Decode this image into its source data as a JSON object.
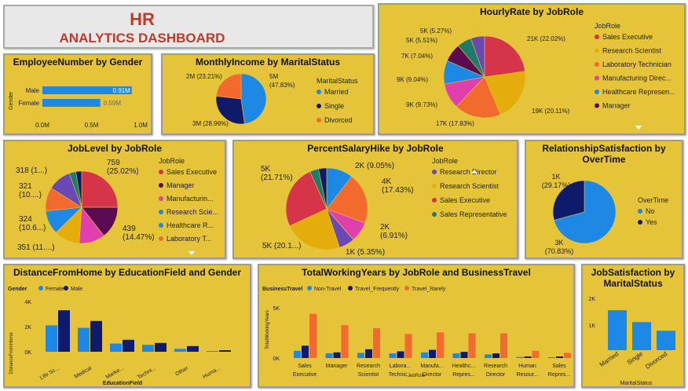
{
  "header": {
    "title": "HR",
    "subtitle": "ANALYTICS DASHBOARD"
  },
  "colors": {
    "tile": "#e6c43a",
    "title": "#c0392b",
    "blue": "#1e88e5",
    "navy": "#101a6b",
    "orange": "#f26a2e",
    "red": "#d63448",
    "gold": "#e4ad0c",
    "pink": "#e23fae",
    "teal": "#207a6e",
    "purple": "#6b49b5",
    "maroon": "#5c0b50"
  },
  "gender": {
    "title": "EmployeeNumber by Gender",
    "axis_label": "Gender",
    "categories": [
      "Male",
      "Female"
    ],
    "values": [
      0.91,
      0.59
    ],
    "labels": [
      "0.91M",
      "0.59M"
    ],
    "ticks": [
      "0.0M",
      "0.5M",
      "1.0M"
    ],
    "xmax": 1.0
  },
  "income": {
    "title": "MonthlyIncome by MaritalStatus",
    "legend_title": "MaritalStatus",
    "slices": [
      {
        "name": "Married",
        "value": 47.83,
        "label": "5M\n(47.83%)",
        "color": "#1e88e5"
      },
      {
        "name": "Single",
        "value": 28.96,
        "label": "3M (28.96%)",
        "color": "#101a6b"
      },
      {
        "name": "Divorced",
        "value": 23.21,
        "label": "2M (23.21%)",
        "color": "#f26a2e"
      }
    ]
  },
  "hourly": {
    "title": "HourlyRate by JobRole",
    "legend_title": "JobRole",
    "legend": [
      "Sales Executive",
      "Research Scientist",
      "Laboratory Technician",
      "Manufacturing Direc...",
      "Healthcare Represen...",
      "Manager"
    ],
    "slices": [
      {
        "value": 22.02,
        "label": "21K (22.02%)",
        "color": "#d63448"
      },
      {
        "value": 20.11,
        "label": "19K (20.11%)",
        "color": "#e4ad0c"
      },
      {
        "value": 17.83,
        "label": "17K (17.83%)",
        "color": "#f26a2e"
      },
      {
        "value": 9.73,
        "label": "9K (9.73%)",
        "color": "#e23fae"
      },
      {
        "value": 9.04,
        "label": "9K (9.04%)",
        "color": "#1e88e5"
      },
      {
        "value": 7.04,
        "label": "7K (7.04%)",
        "color": "#5c0b50"
      },
      {
        "value": 5.51,
        "label": "5K (5.51%)",
        "color": "#207a6e"
      },
      {
        "value": 5.27,
        "label": "5K (5.27%)",
        "color": "#6b49b5"
      }
    ]
  },
  "joblevel": {
    "title": "JobLevel by JobRole",
    "legend_title": "JobRole",
    "legend": [
      "Sales Executive",
      "Manager",
      "Manufacturin...",
      "Research Scie...",
      "Healthcare R...",
      "Laboratory T..."
    ],
    "slices": [
      {
        "value": 25.02,
        "label": "759\n(25.02%)",
        "color": "#d63448"
      },
      {
        "value": 14.47,
        "label": "439\n(14.47%)",
        "color": "#5c0b50"
      },
      {
        "value": 11.6,
        "label": "",
        "color": "#e23fae"
      },
      {
        "value": 11.57,
        "label": "351 (11....)",
        "color": "#e4ad0c"
      },
      {
        "value": 10.68,
        "label": "324\n(10.6...)",
        "color": "#1e88e5"
      },
      {
        "value": 10.58,
        "label": "321\n(10....)",
        "color": "#f26a2e"
      },
      {
        "value": 10.48,
        "label": "318 (1...)",
        "color": "#6b49b5"
      },
      {
        "value": 3.0,
        "label": "",
        "color": "#207a6e"
      },
      {
        "value": 2.6,
        "label": "",
        "color": "#101a6b"
      }
    ]
  },
  "salary": {
    "title": "PercentSalaryHike by JobRole",
    "legend_title": "JobRole",
    "legend": [
      "Research Director",
      "Research Scientist",
      "Sales Executive",
      "Sales Representative"
    ],
    "slices": [
      {
        "value": 9.05,
        "label": "2K (9.05%)",
        "color": "#1e88e5"
      },
      {
        "value": 17.43,
        "label": "4K\n(17.43%)",
        "color": "#f26a2e"
      },
      {
        "value": 6.91,
        "label": "2K\n(6.91%)",
        "color": "#e23fae"
      },
      {
        "value": 5.35,
        "label": "1K (5.35%)",
        "color": "#6b49b5"
      },
      {
        "value": 20.1,
        "label": "5K (20.1...)",
        "color": "#e4ad0c"
      },
      {
        "value": 21.71,
        "label": "5K\n(21.71%)",
        "color": "#d63448"
      },
      {
        "value": 3.0,
        "label": "",
        "color": "#207a6e"
      },
      {
        "value": 2.8,
        "label": "",
        "color": "#101a6b"
      }
    ]
  },
  "relationship": {
    "title": "RelationshipSatisfaction by OverTime",
    "legend_title": "OverTime",
    "slices": [
      {
        "name": "No",
        "value": 70.83,
        "label": "3K\n(70.83%)",
        "color": "#1e88e5"
      },
      {
        "name": "Yes",
        "value": 29.17,
        "label": "1K\n(29.17%)",
        "color": "#101a6b"
      }
    ]
  },
  "distance": {
    "title": "DistanceFromHome by EducationField and Gender",
    "legend_title": "Gender",
    "series": [
      {
        "name": "Female",
        "color": "#1e88e5",
        "values": [
          2100,
          1900,
          650,
          550,
          230,
          60
        ]
      },
      {
        "name": "Male",
        "color": "#101a6b",
        "values": [
          3300,
          2450,
          950,
          700,
          450,
          120
        ]
      }
    ],
    "categories": [
      "Life Sc...",
      "Medical",
      "Marke...",
      "Techni...",
      "Other",
      "Huma..."
    ],
    "ylabel": "DistanceFromHome",
    "xlabel": "EducationField",
    "ticks": [
      "4K",
      "2K",
      "0K"
    ],
    "ymax": 4000
  },
  "working": {
    "title": "TotalWorkingYears by JobRole and BusinessTravel",
    "legend_title": "BusinessTravel",
    "series": [
      {
        "name": "Non-Travel",
        "color": "#1e88e5",
        "values": [
          700,
          450,
          500,
          450,
          550,
          450,
          350,
          100,
          80
        ]
      },
      {
        "name": "Travel_Frequently",
        "color": "#101a6b",
        "values": [
          1200,
          550,
          850,
          650,
          800,
          600,
          450,
          150,
          150
        ]
      },
      {
        "name": "Travel_Rarely",
        "color": "#f26a2e",
        "values": [
          4300,
          3200,
          2900,
          2350,
          2500,
          2400,
          2400,
          700,
          500
        ]
      }
    ],
    "categories": [
      "Sales\nExecutive",
      "Manager",
      "Research\nScientist",
      "Labora...\nTechnic...",
      "Manufa...\nDirector",
      "Healthc...\nRepres...",
      "Research\nDirector",
      "Human\nResour...",
      "Sales\nRepres..."
    ],
    "ylabel": "TotalWorkingYears",
    "xlabel": "JobRole",
    "ticks": [
      "5K",
      "0K"
    ],
    "ymax": 5500
  },
  "jobsat": {
    "title": "JobSatisfaction by MaritalStatus",
    "series_color": "#1e88e5",
    "categories": [
      "Married",
      "Single",
      "Divorced"
    ],
    "values": [
      1850,
      1300,
      900
    ],
    "xlabel": "MaritalStatus",
    "ticks": [
      "2K",
      "1K"
    ],
    "ymax": 2400
  }
}
